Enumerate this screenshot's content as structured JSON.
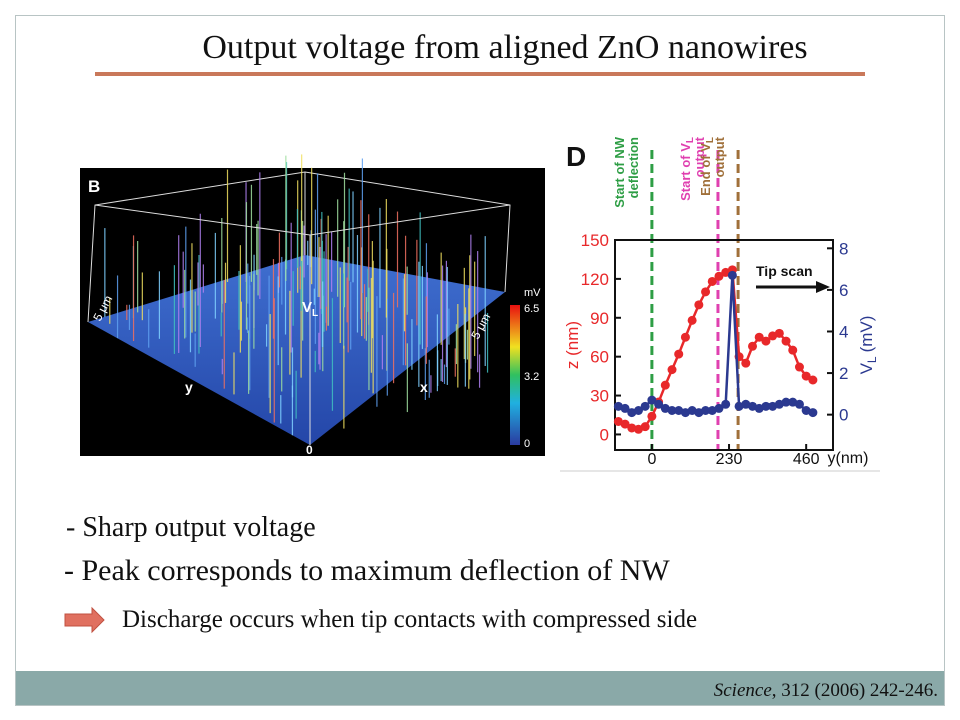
{
  "title": "Output voltage from aligned ZnO nanowires",
  "figure_b": {
    "label": "B",
    "left_scale": "5 μm",
    "left_axis": "y",
    "right_scale": "5 μm",
    "right_axis": "x",
    "vl_main": "V",
    "vl_sub": "L",
    "base_zero": "0",
    "colorbar_unit": "mV",
    "colorbar_ticks": [
      "6.5",
      "3.2",
      "0"
    ]
  },
  "chart_data": {
    "type": "line",
    "panel_label": "D",
    "x": [
      -100,
      -80,
      -60,
      -40,
      -20,
      0,
      20,
      40,
      60,
      80,
      100,
      120,
      140,
      160,
      180,
      200,
      220,
      240,
      260,
      280,
      300,
      320,
      340,
      360,
      380,
      400,
      420,
      440,
      460,
      480,
      500
    ],
    "xlim": [
      -110,
      540
    ],
    "xticks": [
      0,
      230,
      460
    ],
    "xlabel": "y(nm)",
    "ylim": [
      -12,
      150
    ],
    "yticks": [
      0,
      30,
      60,
      90,
      120,
      150
    ],
    "ylabel": "z (nm)",
    "y2lim": [
      -1.7,
      8.4
    ],
    "y2ticks": [
      0,
      2,
      4,
      6,
      8
    ],
    "y2label_main": "V",
    "y2label_sub": "L",
    "y2label_unit": "(mV)",
    "series": [
      {
        "name": "z",
        "color": "#e8282a",
        "values": [
          10,
          8,
          5,
          4,
          6,
          14,
          25,
          38,
          50,
          62,
          75,
          88,
          100,
          110,
          118,
          122,
          125,
          127,
          60,
          55,
          68,
          75,
          72,
          76,
          78,
          72,
          65,
          52,
          45,
          42,
          null
        ]
      },
      {
        "name": "VL",
        "color": "#2b3990",
        "axis": "y2",
        "values": [
          0.4,
          0.3,
          0.1,
          0.2,
          0.4,
          0.7,
          0.5,
          0.3,
          0.2,
          0.2,
          0.1,
          0.2,
          0.1,
          0.2,
          0.2,
          0.3,
          0.5,
          6.7,
          0.4,
          0.5,
          0.4,
          0.3,
          0.4,
          0.4,
          0.5,
          0.6,
          0.6,
          0.5,
          0.2,
          0.1,
          null
        ]
      }
    ],
    "markers": [
      {
        "x": 0,
        "color": "#2e9e45",
        "lines": [
          "Start of NW",
          "deflection"
        ]
      },
      {
        "x": 197,
        "color": "#e040b0",
        "lines": [
          "Start of V",
          "output"
        ],
        "sub": "L"
      },
      {
        "x": 257,
        "color": "#a0703a",
        "lines": [
          "End of V",
          "output"
        ],
        "sub": "L"
      }
    ],
    "annotation": "Tip scan"
  },
  "bullets": [
    "- Sharp output voltage",
    "- Peak corresponds to maximum deflection of NW"
  ],
  "note": "Discharge occurs when tip contacts with compressed side",
  "citation": {
    "journal": "Science",
    "rest": ", 312 (2006) 242-246."
  }
}
